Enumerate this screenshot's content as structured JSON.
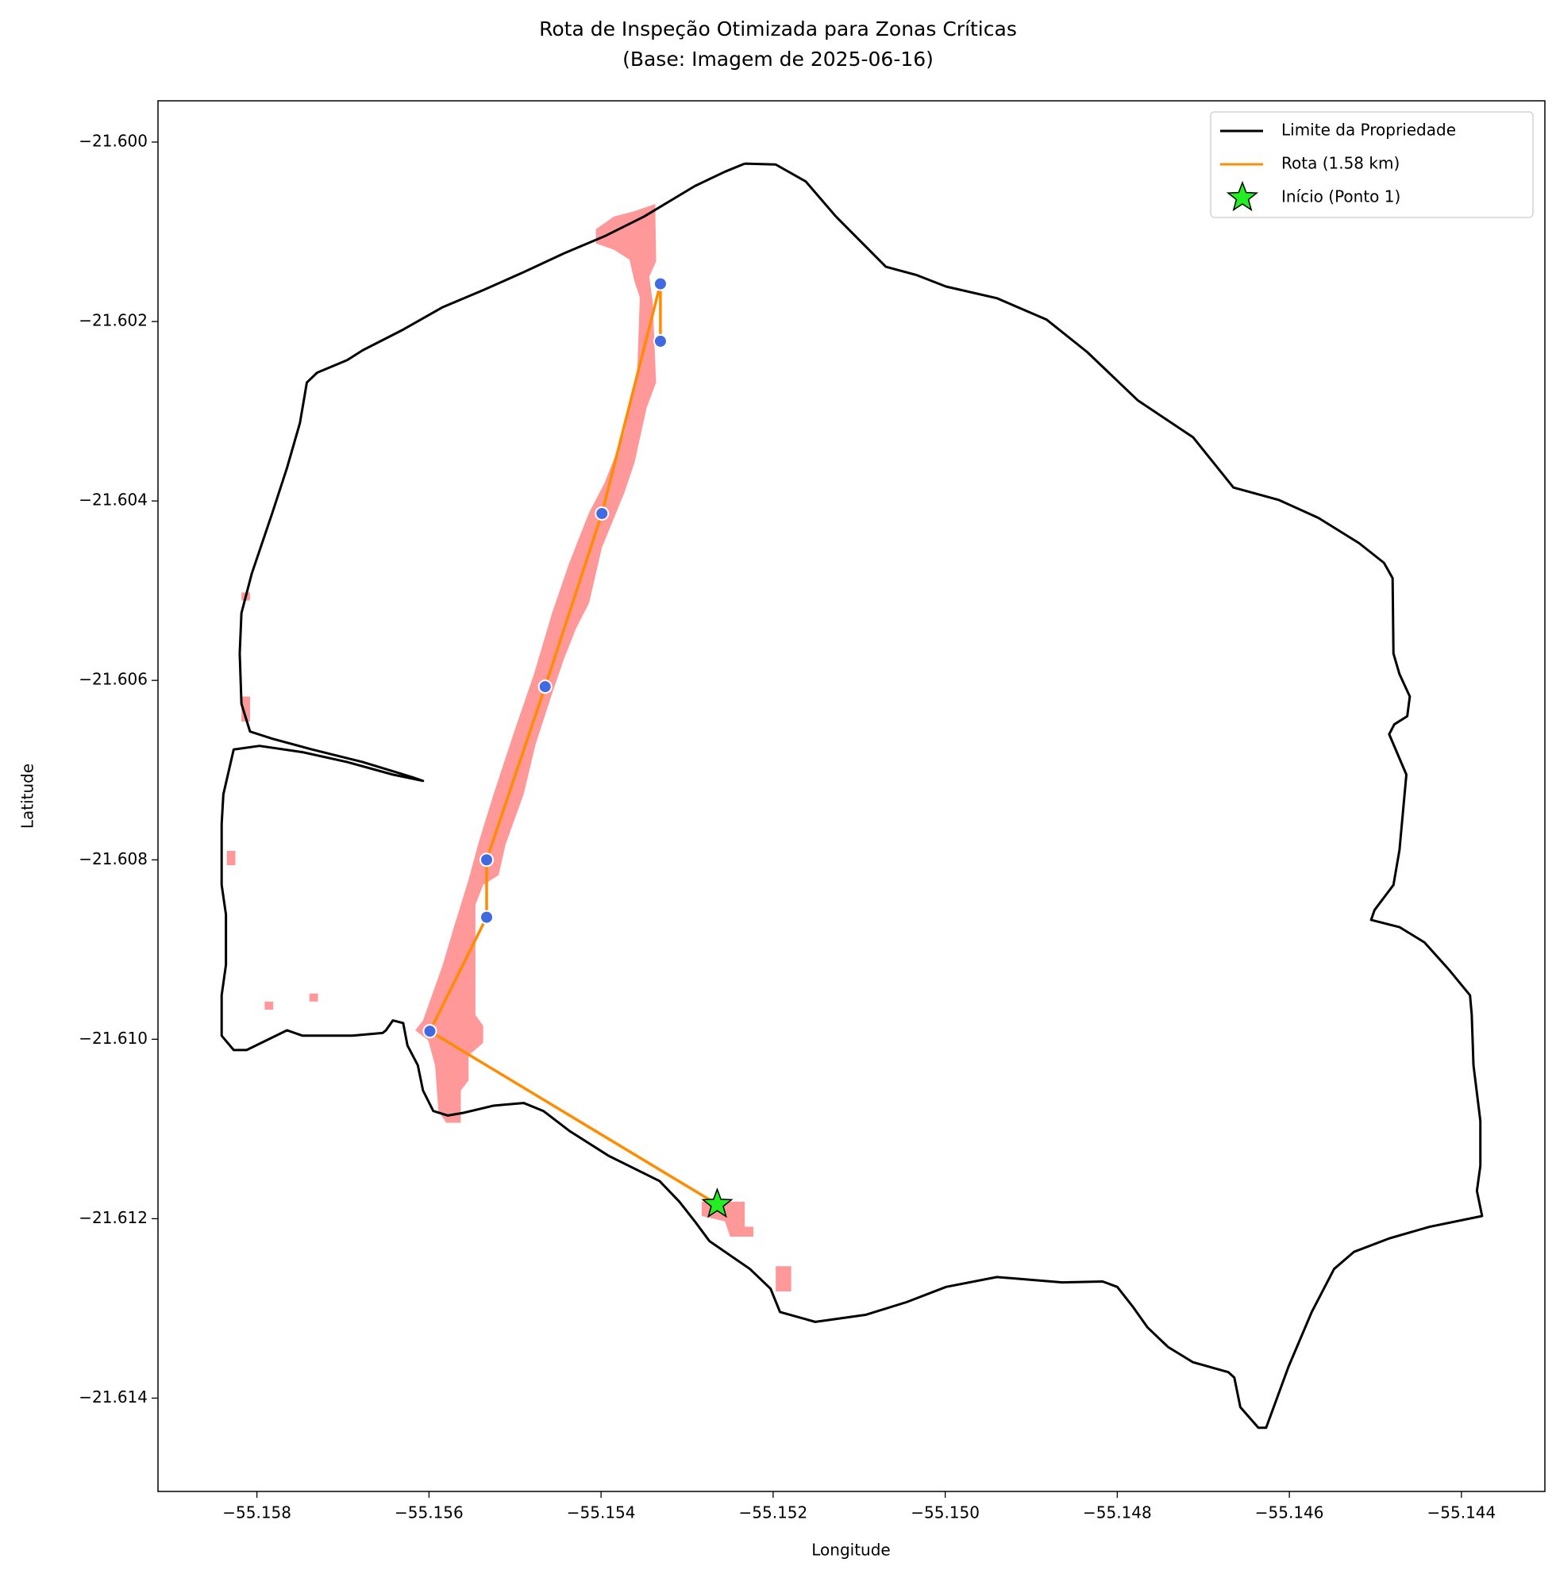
{
  "chart_data": {
    "type": "line",
    "title": "Rota de Inspeção Otimizada para Zonas Críticas\n(Base: Imagem de 2025-06-16)",
    "x_label": "Longitude",
    "y_label": "Latitude",
    "xlim": [
      -55.15915,
      -55.14303
    ],
    "ylim": [
      -21.61504,
      -21.59954
    ],
    "xticks": [
      {
        "value": -55.158,
        "label": "−55.158"
      },
      {
        "value": -55.156,
        "label": "−55.156"
      },
      {
        "value": -55.154,
        "label": "−55.154"
      },
      {
        "value": -55.152,
        "label": "−55.152"
      },
      {
        "value": -55.15,
        "label": "−55.150"
      },
      {
        "value": -55.148,
        "label": "−55.148"
      },
      {
        "value": -55.146,
        "label": "−55.146"
      },
      {
        "value": -55.144,
        "label": "−55.144"
      }
    ],
    "yticks": [
      {
        "value": -21.6,
        "label": "−21.600"
      },
      {
        "value": -21.602,
        "label": "−21.602"
      },
      {
        "value": -21.604,
        "label": "−21.604"
      },
      {
        "value": -21.606,
        "label": "−21.606"
      },
      {
        "value": -21.608,
        "label": "−21.608"
      },
      {
        "value": -21.61,
        "label": "−21.610"
      },
      {
        "value": -21.612,
        "label": "−21.612"
      },
      {
        "value": -21.614,
        "label": "−21.614"
      }
    ],
    "grid": false,
    "legend": "upper right",
    "zones": {
      "color": "#ff9999",
      "polygons": [
        {
          "x": [
            -55.15406,
            -55.15406,
            -55.15385,
            -55.15367,
            -55.15361,
            -55.15355,
            -55.15358,
            -55.15373,
            -55.15396,
            -55.15414,
            -55.15437,
            -55.15457,
            -55.15478,
            -55.15502,
            -55.15525,
            -55.15543,
            -55.15554,
            -55.15572,
            -55.15584,
            -55.15607,
            -55.15616,
            -55.15601,
            -55.15593,
            -55.15589,
            -55.1558,
            -55.15563,
            -55.15563,
            -55.15554,
            -55.15554,
            -55.15537,
            -55.15537,
            -55.15546,
            -55.15546,
            -55.15537,
            -55.15519,
            -55.15511,
            -55.1549,
            -55.15476,
            -55.15457,
            -55.15443,
            -55.15429,
            -55.15414,
            -55.15399,
            -55.15373,
            -55.15361,
            -55.15347,
            -55.15336,
            -55.1534,
            -55.15344,
            -55.15336,
            -55.15337,
            -55.15361,
            -55.15385
          ],
          "y": [
            -21.60097,
            -21.60113,
            -21.6012,
            -21.60131,
            -21.60156,
            -21.60173,
            -21.60257,
            -21.60324,
            -21.6038,
            -21.60413,
            -21.60469,
            -21.60525,
            -21.60593,
            -21.6066,
            -21.60727,
            -21.60783,
            -21.60822,
            -21.60878,
            -21.60917,
            -21.60979,
            -21.6099,
            -21.61001,
            -21.61029,
            -21.6108,
            -21.61093,
            -21.61093,
            -21.61057,
            -21.61046,
            -21.61018,
            -21.61004,
            -21.60985,
            -21.60973,
            -21.6085,
            -21.60828,
            -21.60817,
            -21.60783,
            -21.60727,
            -21.60671,
            -21.60615,
            -21.60576,
            -21.60542,
            -21.60514,
            -21.60452,
            -21.60391,
            -21.60357,
            -21.60296,
            -21.60268,
            -21.60178,
            -21.6015,
            -21.60133,
            -21.60069,
            -21.60077,
            -21.60083
          ]
        },
        {
          "x": [
            -55.15818,
            -55.15808,
            -55.15808,
            -55.15818
          ],
          "y": [
            -21.60502,
            -21.60502,
            -21.60511,
            -21.60511
          ]
        },
        {
          "x": [
            -55.15818,
            -55.15808,
            -55.15808,
            -55.15818
          ],
          "y": [
            -21.60618,
            -21.60618,
            -21.60646,
            -21.60646
          ]
        },
        {
          "x": [
            -55.15835,
            -55.15825,
            -55.15825,
            -55.15835
          ],
          "y": [
            -21.6079,
            -21.6079,
            -21.60806,
            -21.60806
          ]
        },
        {
          "x": [
            -55.15791,
            -55.15781,
            -55.15781,
            -55.15791
          ],
          "y": [
            -21.60958,
            -21.60958,
            -21.60967,
            -21.60967
          ]
        },
        {
          "x": [
            -55.15739,
            -55.15729,
            -55.15729,
            -55.15739
          ],
          "y": [
            -21.60949,
            -21.60949,
            -21.60958,
            -21.60958
          ]
        },
        {
          "x": [
            -55.15283,
            -55.15233,
            -55.15233,
            -55.15223,
            -55.15223,
            -55.1525,
            -55.15256,
            -55.15283
          ],
          "y": [
            -21.61181,
            -21.61181,
            -21.61209,
            -21.61209,
            -21.6122,
            -21.6122,
            -21.61203,
            -21.61197
          ]
        },
        {
          "x": [
            -55.15197,
            -55.15179,
            -55.15179,
            -55.15197
          ],
          "y": [
            -21.61253,
            -21.61253,
            -21.61281,
            -21.61281
          ]
        }
      ]
    },
    "series": [
      {
        "name": "Limite da Propriedade",
        "color": "#000000",
        "x": [
          -55.15233,
          -55.15197,
          -55.15162,
          -55.15127,
          -55.15069,
          -55.15034,
          -55.14999,
          -55.1494,
          -55.14882,
          -55.14835,
          -55.14776,
          -55.14712,
          -55.14665,
          -55.14612,
          -55.14566,
          -55.14519,
          -55.1449,
          -55.1448,
          -55.14479,
          -55.14472,
          -55.1446,
          -55.14463,
          -55.14478,
          -55.14484,
          -55.14464,
          -55.14472,
          -55.14479,
          -55.14501,
          -55.14505,
          -55.14472,
          -55.14443,
          -55.14414,
          -55.1439,
          -55.14388,
          -55.14386,
          -55.14378,
          -55.14378,
          -55.14382,
          -55.14376,
          -55.14437,
          -55.14484,
          -55.14525,
          -55.14548,
          -55.14574,
          -55.14601,
          -55.14627,
          -55.14636,
          -55.14657,
          -55.14664,
          -55.14671,
          -55.14712,
          -55.14741,
          -55.14765,
          -55.14782,
          -55.148,
          -55.14817,
          -55.14864,
          -55.1494,
          -55.14999,
          -55.15045,
          -55.15092,
          -55.15151,
          -55.15192,
          -55.15203,
          -55.15227,
          -55.15274,
          -55.15291,
          -55.15309,
          -55.15332,
          -55.15391,
          -55.15437,
          -55.15467,
          -55.1549,
          -55.15525,
          -55.1556,
          -55.15578,
          -55.15595,
          -55.15607,
          -55.15613,
          -55.15625,
          -55.1563,
          -55.15642,
          -55.1565,
          -55.15654,
          -55.15689,
          -55.15747,
          -55.15765,
          -55.15812,
          -55.15827,
          -55.15841,
          -55.15841,
          -55.15836,
          -55.15836,
          -55.15841,
          -55.15841,
          -55.15839,
          -55.15827,
          -55.15797,
          -55.15747,
          -55.15695,
          -55.15642,
          -55.15607,
          -55.15619,
          -55.15677,
          -55.15736,
          -55.15782,
          -55.15808,
          -55.15818,
          -55.1582,
          -55.15818,
          -55.15806,
          -55.15782,
          -55.15765,
          -55.1575,
          -55.15745,
          -55.15742,
          -55.1573,
          -55.15695,
          -55.15677,
          -55.1563,
          -55.15584,
          -55.15537,
          -55.1549,
          -55.15443,
          -55.15396,
          -55.1535,
          -55.15291,
          -55.15256,
          -55.15233
        ],
        "y": [
          -21.60024,
          -21.60025,
          -21.60044,
          -21.60083,
          -21.60139,
          -21.60148,
          -21.60161,
          -21.60174,
          -21.60198,
          -21.60234,
          -21.60288,
          -21.60329,
          -21.60385,
          -21.60399,
          -21.60419,
          -21.60447,
          -21.60469,
          -21.60486,
          -21.6057,
          -21.60593,
          -21.60618,
          -21.6064,
          -21.60649,
          -21.6066,
          -21.60705,
          -21.60789,
          -21.60828,
          -21.60856,
          -21.60867,
          -21.60875,
          -21.60892,
          -21.60923,
          -21.60951,
          -21.60973,
          -21.61029,
          -21.61091,
          -21.61141,
          -21.61169,
          -21.61197,
          -21.61209,
          -21.61222,
          -21.61237,
          -21.61256,
          -21.61304,
          -21.61365,
          -21.61433,
          -21.61433,
          -21.6141,
          -21.61377,
          -21.61371,
          -21.6136,
          -21.61343,
          -21.61321,
          -21.61298,
          -21.61276,
          -21.6127,
          -21.61271,
          -21.61265,
          -21.61276,
          -21.61293,
          -21.61307,
          -21.61315,
          -21.61304,
          -21.61278,
          -21.61256,
          -21.61225,
          -21.61203,
          -21.61181,
          -21.61158,
          -21.6113,
          -21.61102,
          -21.6108,
          -21.61071,
          -21.61074,
          -21.61082,
          -21.61085,
          -21.6108,
          -21.61057,
          -21.61029,
          -21.61007,
          -21.60982,
          -21.60979,
          -21.6099,
          -21.60993,
          -21.60996,
          -21.60996,
          -21.6099,
          -21.61012,
          -21.61012,
          -21.60996,
          -21.60951,
          -21.60917,
          -21.60861,
          -21.60828,
          -21.6076,
          -21.60727,
          -21.60677,
          -21.60673,
          -21.6068,
          -21.60691,
          -21.60705,
          -21.60712,
          -21.60708,
          -21.60691,
          -21.60677,
          -21.60665,
          -21.60657,
          -21.60626,
          -21.6057,
          -21.60525,
          -21.60481,
          -21.60413,
          -21.60363,
          -21.60313,
          -21.60285,
          -21.60268,
          -21.60257,
          -21.60243,
          -21.60232,
          -21.60209,
          -21.60184,
          -21.60165,
          -21.60145,
          -21.60124,
          -21.60105,
          -21.60083,
          -21.60049,
          -21.60033,
          -21.60024
        ]
      },
      {
        "name": "Rota (1.58 km)",
        "color": "#ff8c00",
        "marker_color": "#4169e1",
        "x": [
          -55.15265,
          -55.15599,
          -55.15533,
          -55.15533,
          -55.15465,
          -55.15399,
          -55.15331,
          -55.15331
        ],
        "y": [
          -21.61184,
          -21.60991,
          -21.60864,
          -21.608,
          -21.60607,
          -21.60414,
          -21.60158,
          -21.60222
        ]
      },
      {
        "name": "Início (Ponto 1)",
        "color": "#22ee22",
        "marker": "star",
        "x": [
          -55.15265
        ],
        "y": [
          -21.61184
        ]
      }
    ]
  }
}
